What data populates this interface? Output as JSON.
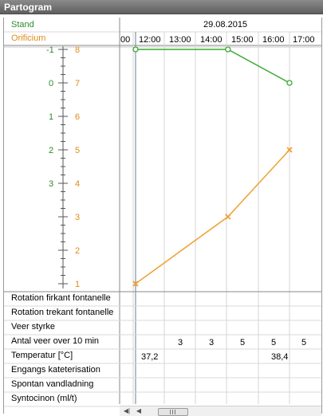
{
  "window": {
    "title": "Partogram"
  },
  "header": {
    "stand_label": "Stand",
    "orificium_label": "Orificium",
    "date": "29.08.2015"
  },
  "colors": {
    "stand": "#3aa832",
    "orificium": "#f0a030",
    "grid": "#d4d4d4",
    "axis": "#555555"
  },
  "chart_data": {
    "type": "line",
    "x_ticks": [
      "00",
      "12:00",
      "13:00",
      "14:00",
      "15:00",
      "16:00",
      "17:00"
    ],
    "stand_ticks": [
      "-1",
      "0",
      "1",
      "2",
      "3"
    ],
    "orificium_ticks": [
      "8",
      "7",
      "6",
      "5",
      "4",
      "3",
      "2",
      "1"
    ],
    "series": [
      {
        "name": "Stand",
        "marker": "circle",
        "x": [
          "11:30",
          "14:30",
          "16:30"
        ],
        "y": [
          -1,
          -1,
          0
        ]
      },
      {
        "name": "Orificium",
        "marker": "x",
        "x": [
          "11:30",
          "14:30",
          "16:30"
        ],
        "y": [
          1,
          3,
          5
        ]
      }
    ]
  },
  "table": {
    "rows": [
      {
        "label": "Rotation firkant fontanelle",
        "values": [
          "",
          "",
          "",
          "",
          "",
          ""
        ]
      },
      {
        "label": "Rotation trekant fontanelle",
        "values": [
          "",
          "",
          "",
          "",
          "",
          ""
        ]
      },
      {
        "label": "Veer styrke",
        "values": [
          "",
          "",
          "",
          "",
          "",
          ""
        ]
      },
      {
        "label": "Antal veer over 10 min",
        "values": [
          "",
          "3",
          "3",
          "5",
          "5",
          "5"
        ]
      },
      {
        "label": "Temperatur [°C]",
        "values": [
          "37,2",
          "",
          "",
          "",
          "38,4",
          ""
        ]
      },
      {
        "label": "Engangs kateterisation",
        "values": [
          "",
          "",
          "",
          "",
          "",
          ""
        ]
      },
      {
        "label": "Spontan vandladning",
        "values": [
          "",
          "",
          "",
          "",
          "",
          ""
        ]
      },
      {
        "label": "Syntocinon (ml/t)",
        "values": [
          "",
          "",
          "",
          "",
          "",
          ""
        ]
      }
    ]
  }
}
